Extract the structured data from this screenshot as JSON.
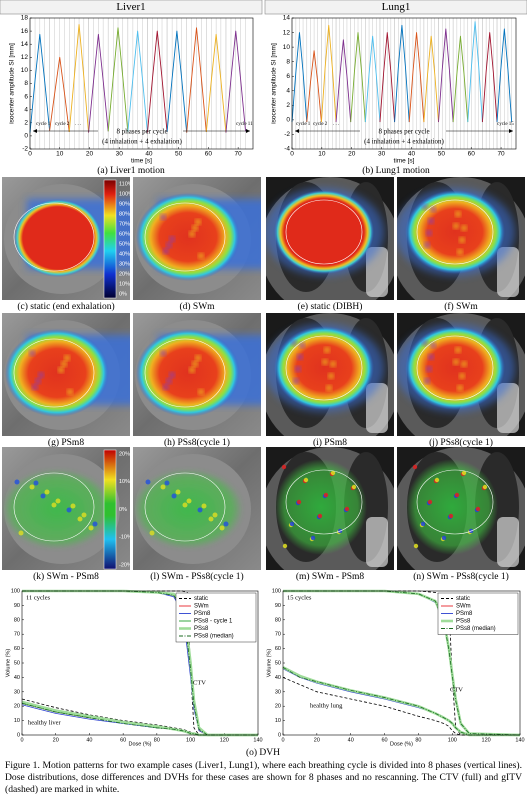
{
  "column_headers": [
    "Liver1",
    "Lung1"
  ],
  "chart_data": [
    {
      "type": "line",
      "caption": "(a) Liver1 motion",
      "ylabel": "isocenter amplitude SI [mm]",
      "xlabel": "time [s]",
      "xlim": [
        0,
        75
      ],
      "xticks": [
        0,
        10,
        20,
        30,
        40,
        50,
        60,
        70
      ],
      "ylim": [
        -2,
        18
      ],
      "yticks": [
        -2,
        0,
        2,
        4,
        6,
        8,
        10,
        12,
        14,
        16,
        18
      ],
      "phase_lines": true,
      "annotations": [
        "cycle 1",
        "cycle 2",
        ". . .",
        "cycle 11",
        "8 phases per cycle",
        "(4 inhalation + 4 exhalation)"
      ],
      "series": [
        {
          "color": "#0072BD",
          "x": [
            0,
            1.7,
            3.3,
            4.9,
            6.6
          ],
          "values": [
            0.5,
            8.5,
            15.5,
            8.5,
            0.8
          ]
        },
        {
          "color": "#D95319",
          "x": [
            6.6,
            8.3,
            10,
            11.6,
            13.2
          ],
          "values": [
            0.8,
            6.5,
            12,
            6.5,
            0.6
          ]
        },
        {
          "color": "#EDB120",
          "x": [
            13.2,
            14.9,
            16.5,
            18.1,
            19.7
          ],
          "values": [
            0.6,
            9,
            17,
            9,
            0.5
          ]
        },
        {
          "color": "#7E2F8E",
          "x": [
            19.7,
            21.4,
            23,
            24.6,
            26.3
          ],
          "values": [
            0.5,
            8.5,
            15.5,
            8.5,
            0.7
          ]
        },
        {
          "color": "#77AC30",
          "x": [
            26.3,
            28,
            29.6,
            31.2,
            32.9
          ],
          "values": [
            0.7,
            9,
            16.5,
            9,
            0.6
          ]
        },
        {
          "color": "#4DBEEE",
          "x": [
            32.9,
            34.6,
            36.2,
            37.8,
            39.5
          ],
          "values": [
            0.6,
            8.8,
            16,
            8.8,
            0.5
          ]
        },
        {
          "color": "#A2142F",
          "x": [
            39.5,
            41.2,
            42.8,
            44.4,
            46.1
          ],
          "values": [
            0.5,
            8.8,
            16,
            8.8,
            0.6
          ]
        },
        {
          "color": "#0072BD",
          "x": [
            46.1,
            47.8,
            49.4,
            51,
            52.7
          ],
          "values": [
            0.6,
            8.8,
            16,
            8.8,
            0.5
          ]
        },
        {
          "color": "#D95319",
          "x": [
            52.7,
            54.4,
            56,
            57.6,
            59.3
          ],
          "values": [
            0.5,
            9,
            16.5,
            9,
            0.6
          ]
        },
        {
          "color": "#EDB120",
          "x": [
            59.3,
            61,
            62.6,
            64.2,
            65.9
          ],
          "values": [
            0.6,
            8.5,
            15.5,
            8.5,
            0.5
          ]
        },
        {
          "color": "#7E2F8E",
          "x": [
            65.9,
            67.6,
            69.2,
            70.8,
            72.5
          ],
          "values": [
            0.5,
            8.8,
            16,
            8.8,
            0.7
          ]
        }
      ]
    },
    {
      "type": "line",
      "caption": "(b) Lung1 motion",
      "ylabel": "isocenter amplitude SI [mm]",
      "xlabel": "time [s]",
      "xlim": [
        0,
        75
      ],
      "xticks": [
        0,
        10,
        20,
        30,
        40,
        50,
        60,
        70
      ],
      "ylim": [
        -4,
        14
      ],
      "yticks": [
        -4,
        -2,
        0,
        2,
        4,
        6,
        8,
        10,
        12,
        14
      ],
      "phase_lines": true,
      "annotations": [
        "cycle 1",
        "cycle 2",
        ". . .",
        "cycle 15",
        "8 phases per cycle",
        "(4 inhalation + 4 exhalation)"
      ],
      "series": [
        {
          "color": "#0072BD",
          "x": [
            0,
            1.3,
            2.5,
            3.7,
            4.95
          ],
          "values": [
            -0.3,
            6.6,
            12,
            6.6,
            -0.3
          ]
        },
        {
          "color": "#D95319",
          "x": [
            4.95,
            6.2,
            7.4,
            8.6,
            9.85
          ],
          "values": [
            -0.3,
            5.2,
            9.5,
            5.2,
            -0.3
          ]
        },
        {
          "color": "#EDB120",
          "x": [
            9.85,
            11.1,
            12.3,
            13.5,
            14.75
          ],
          "values": [
            -0.3,
            7.2,
            13,
            7.2,
            -0.3
          ]
        },
        {
          "color": "#7E2F8E",
          "x": [
            14.75,
            16,
            17.2,
            18.4,
            19.65
          ],
          "values": [
            -0.3,
            6,
            11,
            6,
            -0.3
          ]
        },
        {
          "color": "#77AC30",
          "x": [
            19.65,
            20.9,
            22.1,
            23.3,
            24.55
          ],
          "values": [
            -0.3,
            6.6,
            12,
            6.6,
            -0.3
          ]
        },
        {
          "color": "#4DBEEE",
          "x": [
            24.55,
            25.8,
            27,
            28.2,
            29.45
          ],
          "values": [
            -0.3,
            6.3,
            11.5,
            6.3,
            -0.3
          ]
        },
        {
          "color": "#A2142F",
          "x": [
            29.45,
            30.7,
            31.9,
            33.1,
            34.35
          ],
          "values": [
            -0.3,
            6.6,
            12,
            6.6,
            -0.3
          ]
        },
        {
          "color": "#0072BD",
          "x": [
            34.35,
            35.6,
            36.8,
            38,
            39.25
          ],
          "values": [
            -0.3,
            7.2,
            13,
            7.2,
            -0.3
          ]
        },
        {
          "color": "#D95319",
          "x": [
            39.25,
            40.5,
            41.7,
            42.9,
            44.15
          ],
          "values": [
            -0.3,
            6.6,
            12,
            6.6,
            -0.3
          ]
        },
        {
          "color": "#EDB120",
          "x": [
            44.15,
            45.4,
            46.6,
            47.8,
            49.05
          ],
          "values": [
            -0.3,
            6.3,
            11.5,
            6.3,
            -0.3
          ]
        },
        {
          "color": "#7E2F8E",
          "x": [
            49.05,
            50.3,
            51.5,
            52.7,
            53.95
          ],
          "values": [
            -0.3,
            6.9,
            12.5,
            6.9,
            -0.3
          ]
        },
        {
          "color": "#77AC30",
          "x": [
            53.95,
            55.2,
            56.4,
            57.6,
            58.85
          ],
          "values": [
            -0.3,
            6.3,
            11.5,
            6.3,
            -0.3
          ]
        },
        {
          "color": "#4DBEEE",
          "x": [
            58.85,
            60.1,
            61.3,
            62.5,
            63.75
          ],
          "values": [
            -0.3,
            7.4,
            13.5,
            7.4,
            -0.3
          ]
        },
        {
          "color": "#A2142F",
          "x": [
            63.75,
            65,
            66.2,
            67.4,
            68.65
          ],
          "values": [
            -0.3,
            6.6,
            12,
            6.6,
            -0.3
          ]
        },
        {
          "color": "#0072BD",
          "x": [
            68.65,
            69.9,
            71.1,
            72.3,
            73.55
          ],
          "values": [
            -0.3,
            6.9,
            12.5,
            6.9,
            -0.3
          ]
        }
      ]
    },
    {
      "type": "line",
      "ylabel": "Volume (%)",
      "xlabel": "Dose (%)",
      "xlim": [
        0,
        140
      ],
      "xticks": [
        0,
        20,
        40,
        60,
        80,
        100,
        120,
        140
      ],
      "ylim": [
        0,
        100
      ],
      "yticks": [
        0,
        10,
        20,
        30,
        40,
        50,
        60,
        70,
        80,
        90,
        100
      ],
      "legend": "upper right",
      "annotations": [
        "11 cycles",
        "CTV",
        "healthy liver"
      ],
      "x": [
        0,
        10,
        20,
        40,
        60,
        80,
        90,
        95,
        98,
        100,
        102,
        105,
        110,
        140
      ],
      "series": [
        {
          "name": "static",
          "color": "#000000",
          "style": "dashed",
          "values": [
            100,
            100,
            100,
            100,
            100,
            100,
            100,
            100,
            99,
            45,
            5,
            0,
            0,
            0
          ],
          "values_healthy": [
            25,
            22,
            19,
            14,
            10,
            7,
            5,
            4,
            3,
            2,
            0,
            0,
            0,
            0
          ]
        },
        {
          "name": "SWm",
          "color": "#e8242a",
          "style": "solid",
          "values": [
            100,
            100,
            100,
            100,
            100,
            99,
            97,
            88,
            65,
            45,
            20,
            3,
            0,
            0
          ],
          "values_healthy": [
            22,
            19,
            16,
            12,
            9,
            5,
            4,
            3,
            2,
            1,
            1,
            0,
            0,
            0
          ]
        },
        {
          "name": "PSm8",
          "color": "#2a3fd0",
          "style": "solid",
          "values": [
            100,
            100,
            100,
            100,
            100,
            99,
            96,
            86,
            60,
            40,
            18,
            3,
            0,
            0
          ],
          "values_healthy": [
            21,
            18,
            15,
            11,
            8,
            5,
            4,
            3,
            2,
            1,
            1,
            0,
            0,
            0
          ]
        },
        {
          "name": "PSs8 - cycle 1",
          "color": "#1f9e2c",
          "style": "solid",
          "values": [
            100,
            100,
            100,
            100,
            100,
            99,
            97,
            89,
            68,
            48,
            22,
            4,
            0,
            0
          ],
          "values_healthy": [
            22,
            19,
            16,
            12,
            9,
            5,
            4,
            3,
            2,
            1,
            1,
            0,
            0,
            0
          ]
        },
        {
          "name": "PSs8",
          "color": "#9fdc9a",
          "style": "thick",
          "values": [
            100,
            100,
            100,
            100,
            100,
            99,
            98,
            90,
            70,
            50,
            24,
            5,
            0,
            0
          ],
          "values_healthy": [
            23,
            20,
            17,
            13,
            9,
            6,
            4,
            3,
            2,
            1,
            1,
            0,
            0,
            0
          ]
        },
        {
          "name": "PSs8 (median)",
          "color": "#1b6b22",
          "style": "dashdot",
          "values": [
            100,
            100,
            100,
            100,
            100,
            99,
            97,
            89,
            66,
            46,
            21,
            4,
            0,
            0
          ],
          "values_healthy": [
            22,
            19,
            16,
            12,
            8,
            5,
            4,
            3,
            2,
            1,
            1,
            0,
            0,
            0
          ]
        }
      ]
    },
    {
      "type": "line",
      "ylabel": "Volume (%)",
      "xlabel": "Dose (%)",
      "xlim": [
        0,
        140
      ],
      "xticks": [
        0,
        20,
        40,
        60,
        80,
        100,
        120,
        140
      ],
      "ylim": [
        0,
        100
      ],
      "yticks": [
        0,
        10,
        20,
        30,
        40,
        50,
        60,
        70,
        80,
        90,
        100
      ],
      "legend": "upper right",
      "annotations": [
        "15 cycles",
        "CTV",
        "healthy lung"
      ],
      "x": [
        0,
        10,
        20,
        40,
        60,
        80,
        90,
        95,
        98,
        100,
        102,
        105,
        110,
        140
      ],
      "series": [
        {
          "name": "static",
          "color": "#000000",
          "style": "dashed",
          "values": [
            100,
            100,
            100,
            100,
            100,
            100,
            99,
            97,
            90,
            40,
            5,
            0,
            0,
            0
          ],
          "values_healthy": [
            40,
            35,
            30,
            25,
            20,
            13,
            10,
            8,
            6,
            3,
            1,
            0,
            0,
            0
          ]
        },
        {
          "name": "SWm",
          "color": "#e8242a",
          "style": "solid",
          "values": [
            100,
            100,
            100,
            100,
            100,
            98,
            93,
            80,
            60,
            42,
            25,
            8,
            1,
            0
          ],
          "values_healthy": [
            47,
            40,
            37,
            31,
            26,
            20,
            15,
            12,
            10,
            8,
            5,
            2,
            0,
            0
          ]
        },
        {
          "name": "PSm8",
          "color": "#2a3fd0",
          "style": "solid",
          "values": [
            100,
            100,
            100,
            100,
            100,
            98,
            92,
            78,
            58,
            40,
            23,
            7,
            1,
            0
          ],
          "values_healthy": [
            46,
            40,
            36,
            30,
            25,
            19,
            15,
            12,
            10,
            8,
            5,
            2,
            0,
            0
          ]
        },
        {
          "name": "PSs8",
          "color": "#9fdc9a",
          "style": "thick",
          "values": [
            100,
            100,
            100,
            100,
            100,
            98,
            93,
            80,
            60,
            42,
            25,
            8,
            1,
            0
          ],
          "values_healthy": [
            47,
            41,
            37,
            31,
            26,
            20,
            15,
            12,
            10,
            8,
            5,
            2,
            0,
            0
          ]
        },
        {
          "name": "PSs8 (median)",
          "color": "#1b6b22",
          "style": "dashdot",
          "values": [
            100,
            100,
            100,
            100,
            100,
            98,
            93,
            79,
            59,
            41,
            24,
            8,
            1,
            0
          ],
          "values_healthy": [
            47,
            40,
            37,
            31,
            26,
            20,
            15,
            12,
            10,
            8,
            5,
            2,
            0,
            0
          ]
        }
      ]
    }
  ],
  "panels": [
    {
      "caption": "(c) static (end exhalation)"
    },
    {
      "caption": "(d) SWm"
    },
    {
      "caption": "(e) static (DIBH)"
    },
    {
      "caption": "(f) SWm"
    },
    {
      "caption": "(g) PSm8"
    },
    {
      "caption": "(h) PSs8(cycle 1)"
    },
    {
      "caption": "(i) PSm8"
    },
    {
      "caption": "(j) PSs8(cycle 1)"
    },
    {
      "caption": "(k) SWm - PSm8"
    },
    {
      "caption": "(l) SWm - PSs8(cycle 1)"
    },
    {
      "caption": "(m) SWm - PSm8"
    },
    {
      "caption": "(n) SWm - PSs8(cycle 1)"
    }
  ],
  "dose_colorbar": [
    "110%",
    "100%",
    "90%",
    "80%",
    "70%",
    "60%",
    "50%",
    "40%",
    "30%",
    "20%",
    "10%",
    "0%"
  ],
  "diff_colorbar": [
    "20%",
    "10%",
    "0%",
    "-10%",
    "-20%"
  ],
  "dvh_caption": "(o) DVH",
  "figure_caption": "Figure 1. Motion patterns for two example cases (Liver1, Lung1), where each breathing cycle is divided into 8 phases (vertical lines). Dose distributions, dose differences and DVHs for these cases are shown for 8 phases and no rescanning. The CTV (full) and gITV (dashed) are marked in white."
}
